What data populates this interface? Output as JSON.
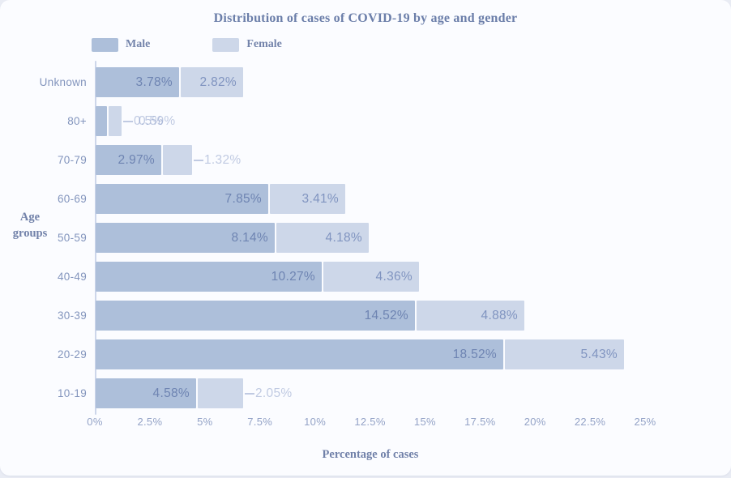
{
  "colors": {
    "male_bar": "#adbfda",
    "female_bar": "#cdd7e9",
    "male_value_label": "#6e84b2",
    "female_value_label": "#8094c0",
    "outside_label": "rgba(128,148,195,0.48)",
    "axis_line": "#cdd6ea",
    "title_text": "#6b7ea9",
    "card_background": "#fbfcff"
  },
  "legend": [
    {
      "label": "Male"
    },
    {
      "label": "Female"
    }
  ],
  "chart_data": {
    "type": "bar",
    "orientation": "horizontal",
    "stacked": true,
    "title": "Distribution of cases of COVID-19 by age and gender",
    "xlabel": "Percentage of cases",
    "ylabel": "Age groups",
    "categories": [
      "Unknown",
      "80+",
      "70-79",
      "60-69",
      "50-59",
      "40-49",
      "30-39",
      "20-29",
      "10-19"
    ],
    "series": [
      {
        "name": "Male",
        "values": [
          3.78,
          0.5,
          2.97,
          7.85,
          8.14,
          10.27,
          14.52,
          18.52,
          4.58
        ]
      },
      {
        "name": "Female",
        "values": [
          2.82,
          0.59,
          1.32,
          3.41,
          4.18,
          4.36,
          4.88,
          5.43,
          2.05
        ]
      }
    ],
    "value_labels": {
      "male": [
        "3.78%",
        "0.5%",
        "2.97%",
        "7.85%",
        "8.14%",
        "10.27%",
        "14.52%",
        "18.52%",
        "4.58%"
      ],
      "female": [
        "2.82%",
        "0.59%",
        "1.32%",
        "3.41%",
        "4.18%",
        "4.36%",
        "4.88%",
        "5.43%",
        "2.05%"
      ]
    },
    "x_ticks": [
      "0%",
      "2.5%",
      "5%",
      "7.5%",
      "10%",
      "12.5%",
      "15%",
      "17.5%",
      "20%",
      "22.5%",
      "25%"
    ],
    "x_tick_values": [
      0,
      2.5,
      5,
      7.5,
      10,
      12.5,
      15,
      17.5,
      20,
      22.5,
      25
    ],
    "xlim": [
      0,
      25
    ],
    "grid": false,
    "legend_position": "top-left"
  }
}
